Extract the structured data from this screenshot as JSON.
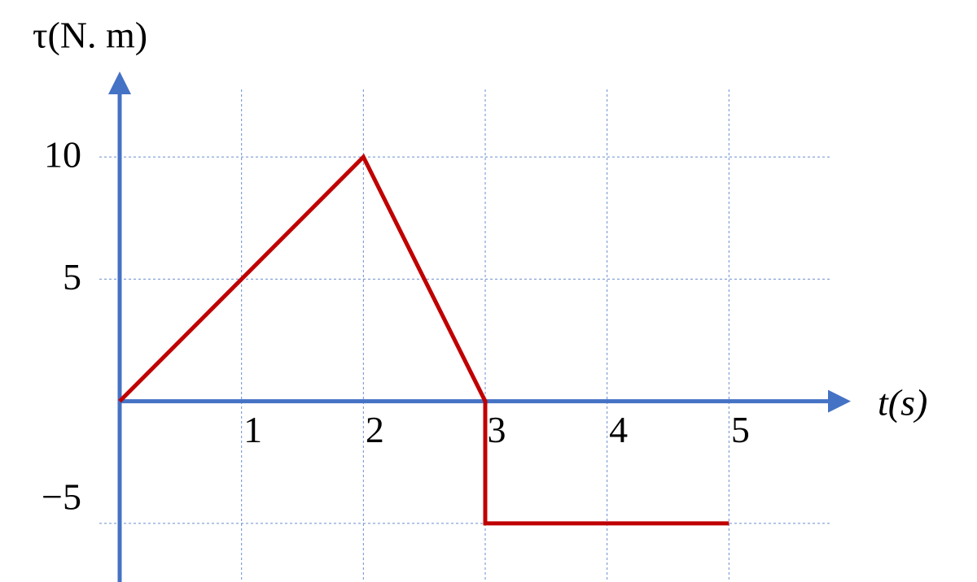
{
  "chart_data": {
    "type": "line",
    "y_label": "τ(N. m)",
    "x_label": "t(s)",
    "x": [
      0,
      2,
      3,
      3,
      5
    ],
    "values": [
      0,
      10,
      0,
      -5,
      -5
    ],
    "color": "#c00000",
    "axis_color": "#4472c4",
    "xlim": [
      0,
      6
    ],
    "ylim": [
      -7.4,
      13.5
    ],
    "xticks": [
      1,
      2,
      3,
      4,
      5
    ],
    "yticks": [
      {
        "value": -5,
        "label": "−5"
      },
      5,
      10
    ],
    "grid": true
  }
}
